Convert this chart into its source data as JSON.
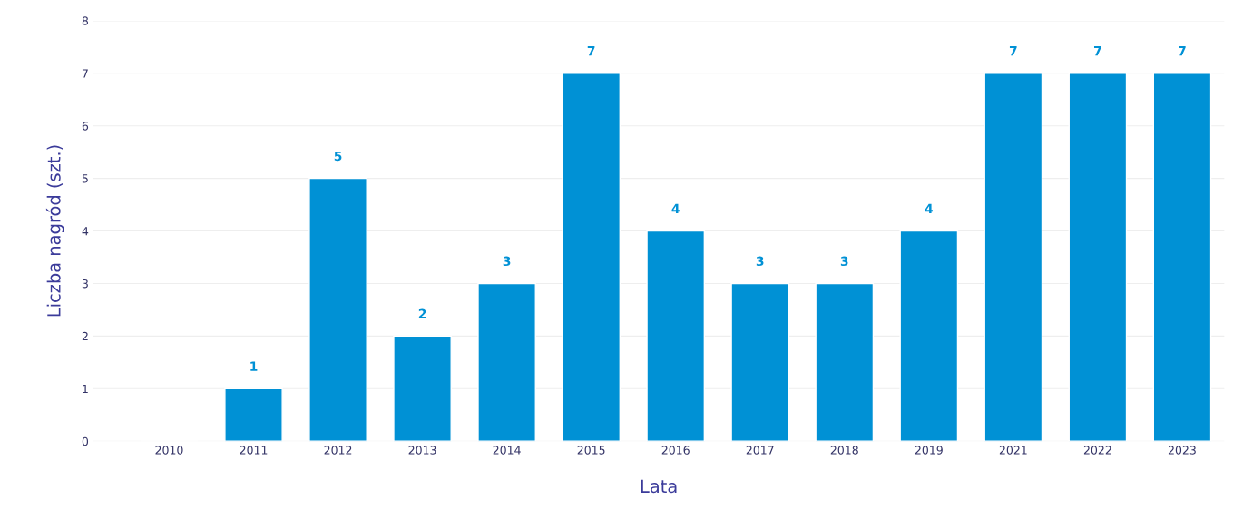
{
  "chart_data": {
    "type": "bar",
    "xlabel": "Lata",
    "ylabel": "Liczba nagród (szt.)",
    "categories": [
      "2010",
      "2011",
      "2012",
      "2013",
      "2014",
      "2015",
      "2016",
      "2017",
      "2018",
      "2019",
      "2021",
      "2022",
      "2023"
    ],
    "values": [
      null,
      1,
      5,
      2,
      3,
      7,
      4,
      3,
      3,
      4,
      7,
      7,
      7
    ],
    "color": "#0091d5",
    "ylim": [
      0,
      8
    ],
    "yticks": [
      0,
      1,
      2,
      3,
      4,
      5,
      6,
      7,
      8
    ],
    "grid": "y",
    "data_labels": true
  }
}
